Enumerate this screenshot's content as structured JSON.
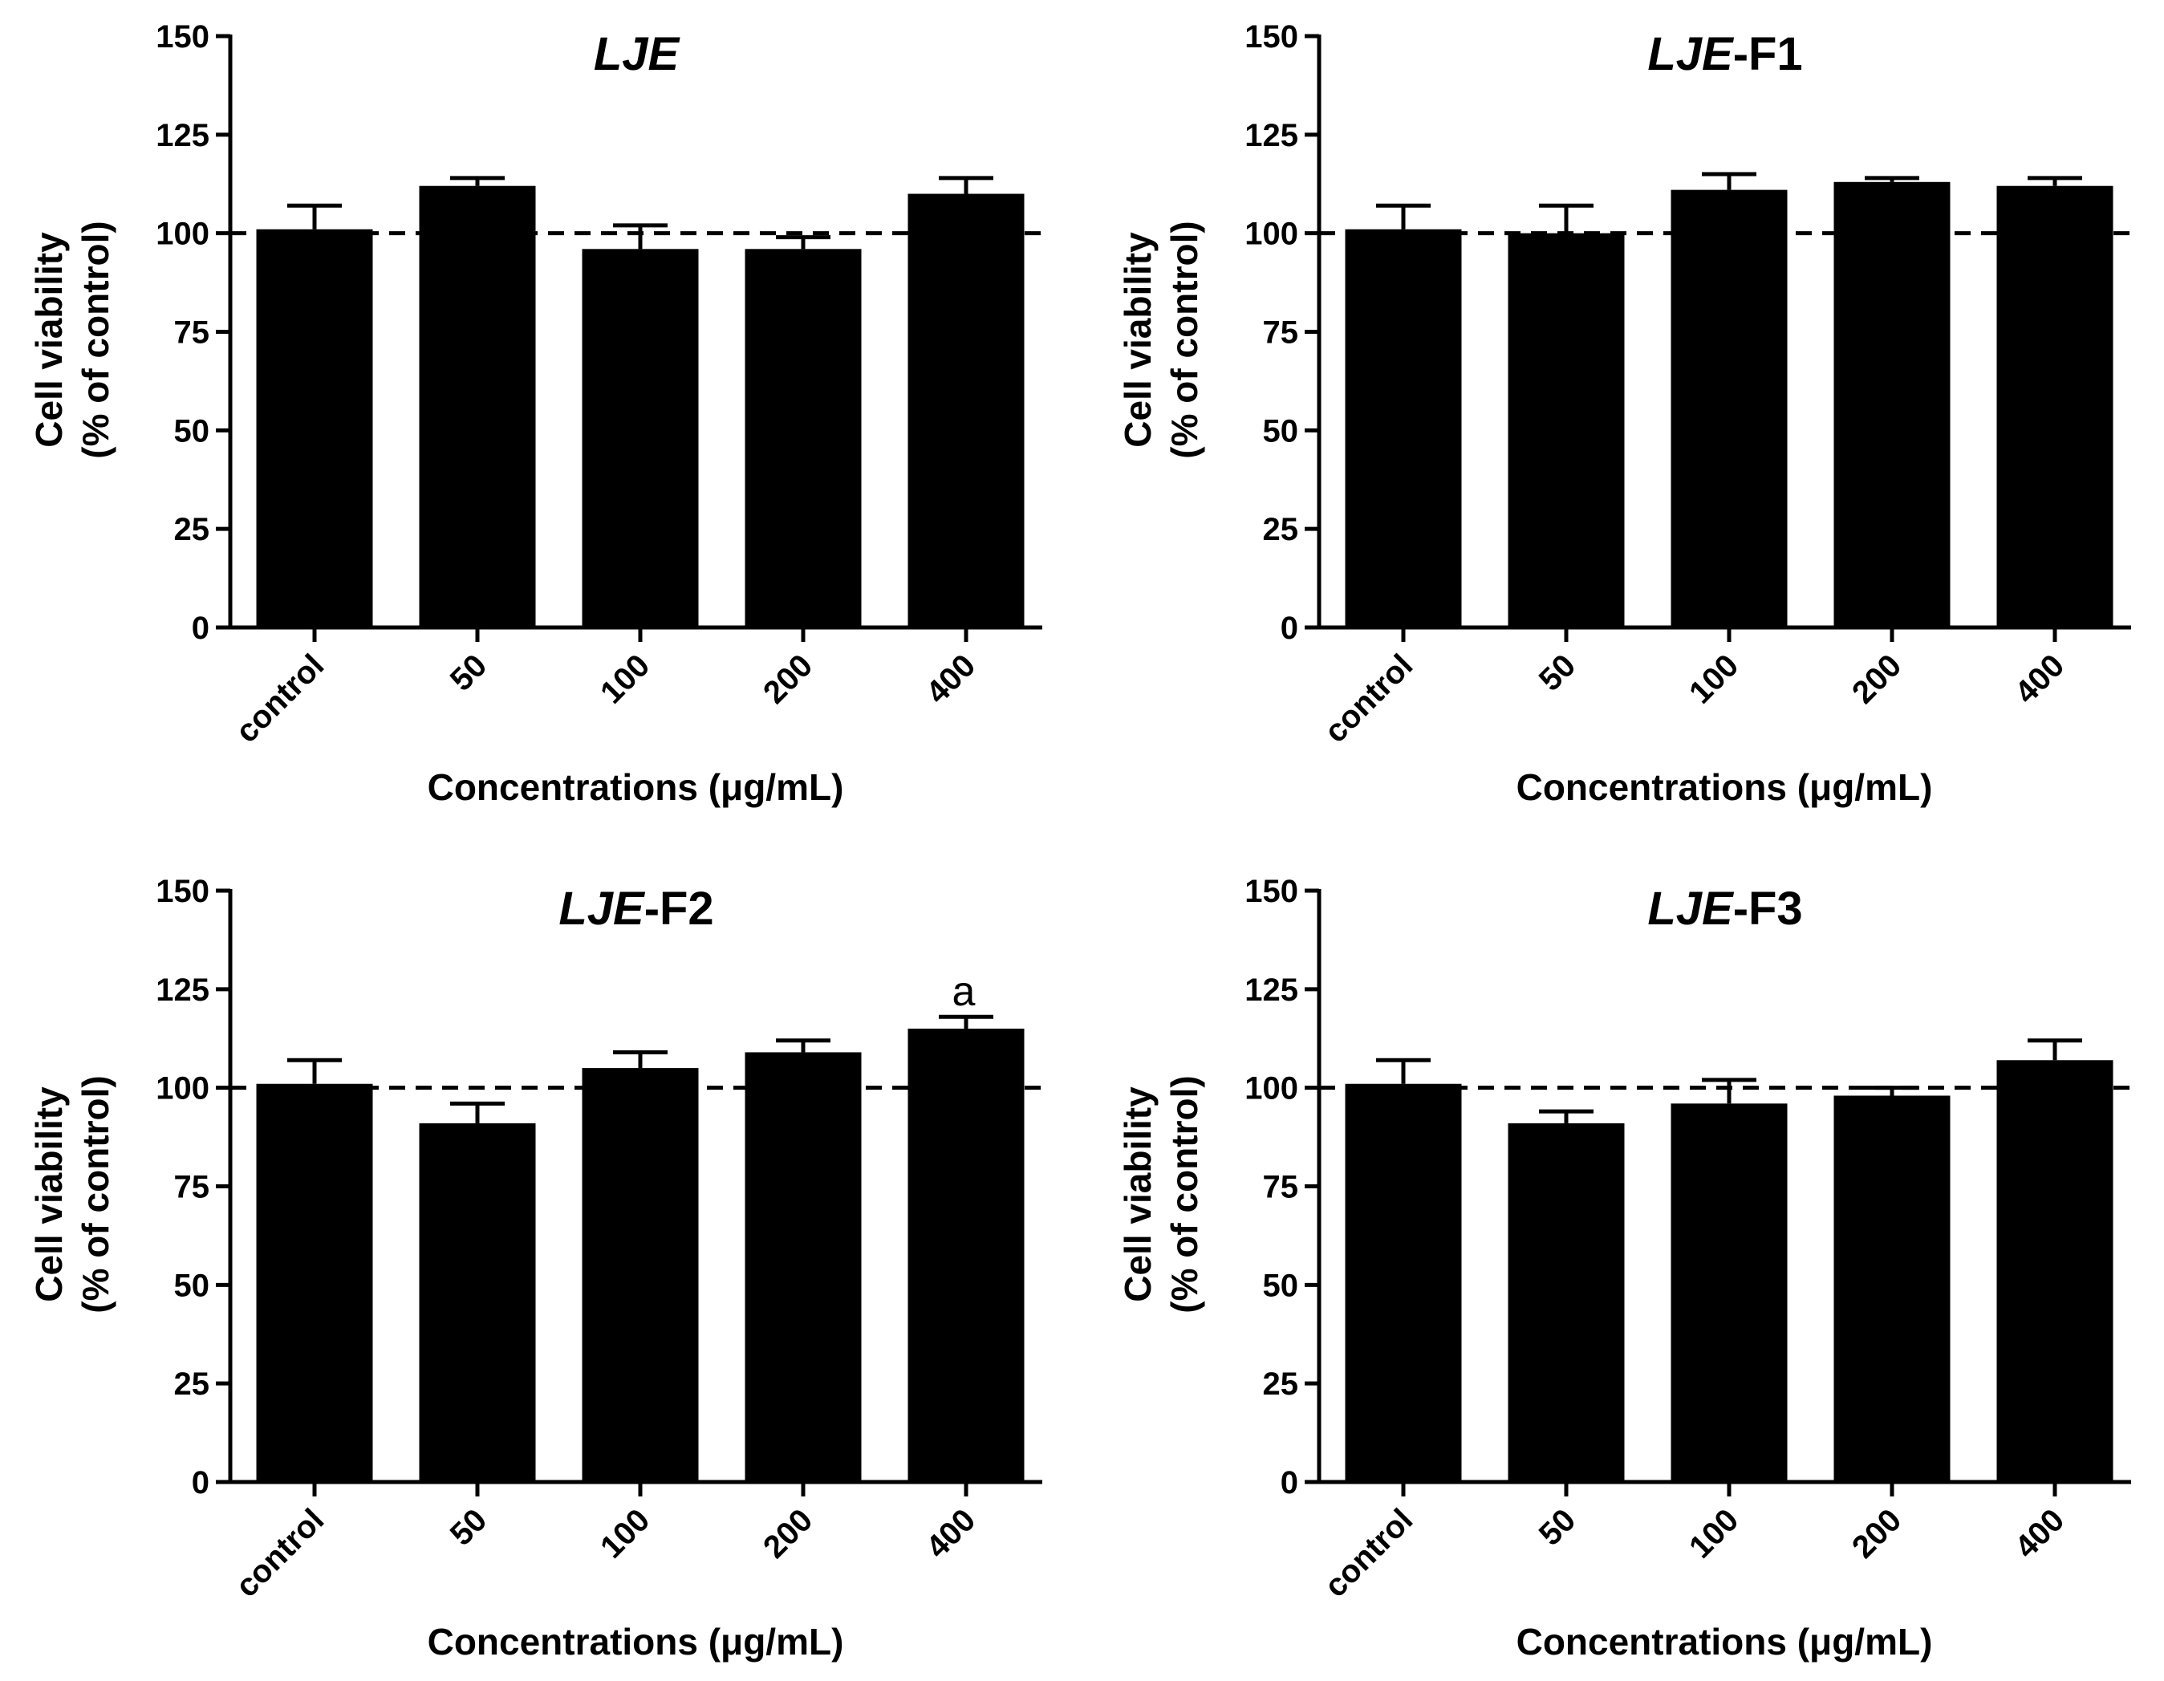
{
  "chart_data": [
    {
      "type": "bar",
      "title_italic": "LJE",
      "title_suffix": "",
      "categories": [
        "control",
        "50",
        "100",
        "200",
        "400"
      ],
      "values": [
        101,
        112,
        96,
        96,
        110
      ],
      "errors": [
        6,
        2,
        6,
        3,
        4
      ],
      "annotations": [
        "",
        "",
        "",
        "",
        ""
      ],
      "xlabel": "Concentrations (μg/mL)",
      "ylabel_line1": "Cell viability",
      "ylabel_line2": "(% of control)",
      "ylim": [
        0,
        150
      ],
      "yticks": [
        0,
        25,
        50,
        75,
        100,
        125,
        150
      ],
      "reference_line": 100
    },
    {
      "type": "bar",
      "title_italic": "LJE",
      "title_suffix": "-F1",
      "categories": [
        "control",
        "50",
        "100",
        "200",
        "400"
      ],
      "values": [
        101,
        100,
        111,
        113,
        112
      ],
      "errors": [
        6,
        7,
        4,
        1,
        2
      ],
      "annotations": [
        "",
        "",
        "",
        "",
        ""
      ],
      "xlabel": "Concentrations (μg/mL)",
      "ylabel_line1": "Cell viability",
      "ylabel_line2": "(% of control)",
      "ylim": [
        0,
        150
      ],
      "yticks": [
        0,
        25,
        50,
        75,
        100,
        125,
        150
      ],
      "reference_line": 100
    },
    {
      "type": "bar",
      "title_italic": "LJE",
      "title_suffix": "-F2",
      "categories": [
        "control",
        "50",
        "100",
        "200",
        "400"
      ],
      "values": [
        101,
        91,
        105,
        109,
        115
      ],
      "errors": [
        6,
        5,
        4,
        3,
        3
      ],
      "annotations": [
        "",
        "",
        "",
        "",
        "a"
      ],
      "xlabel": "Concentrations (μg/mL)",
      "ylabel_line1": "Cell viability",
      "ylabel_line2": "(% of control)",
      "ylim": [
        0,
        150
      ],
      "yticks": [
        0,
        25,
        50,
        75,
        100,
        125,
        150
      ],
      "reference_line": 100
    },
    {
      "type": "bar",
      "title_italic": "LJE",
      "title_suffix": "-F3",
      "categories": [
        "control",
        "50",
        "100",
        "200",
        "400"
      ],
      "values": [
        101,
        91,
        96,
        98,
        107
      ],
      "errors": [
        6,
        3,
        6,
        2,
        5
      ],
      "annotations": [
        "",
        "",
        "",
        "",
        ""
      ],
      "xlabel": "Concentrations (μg/mL)",
      "ylabel_line1": "Cell viability",
      "ylabel_line2": "(% of control)",
      "ylim": [
        0,
        150
      ],
      "yticks": [
        0,
        25,
        50,
        75,
        100,
        125,
        150
      ],
      "reference_line": 100
    }
  ]
}
